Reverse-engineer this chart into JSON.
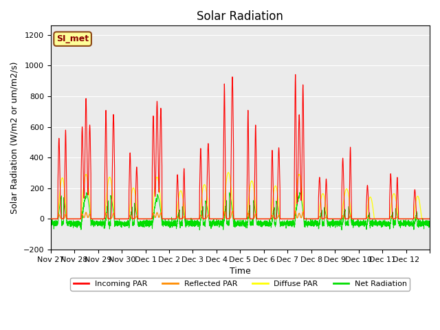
{
  "title": "Solar Radiation",
  "xlabel": "Time",
  "ylabel": "Solar Radiation (W/m2 or um/m2/s)",
  "ylim": [
    -200,
    1260
  ],
  "yticks": [
    -200,
    0,
    200,
    400,
    600,
    800,
    1000,
    1200
  ],
  "x_labels": [
    "Nov 27",
    "Nov 28",
    "Nov 29",
    "Nov 30",
    "Dec 1",
    "Dec 2",
    "Dec 3",
    "Dec 4",
    "Dec 5",
    "Dec 6",
    "Dec 7",
    "Dec 8",
    "Dec 9",
    "Dec 10",
    "Dec 11",
    "Dec 12"
  ],
  "colors": {
    "incoming": "#FF0000",
    "reflected": "#FF8C00",
    "diffuse": "#FFFF00",
    "net": "#00DD00",
    "background": "#EBEBEB",
    "annotation_bg": "#FFFF99",
    "annotation_border": "#8B4513",
    "annotation_text": "#8B0000"
  },
  "legend_labels": [
    "Incoming PAR",
    "Reflected PAR",
    "Diffuse PAR",
    "Net Radiation"
  ],
  "annotation_text": "SI_met",
  "title_fontsize": 12,
  "label_fontsize": 9,
  "tick_fontsize": 8
}
